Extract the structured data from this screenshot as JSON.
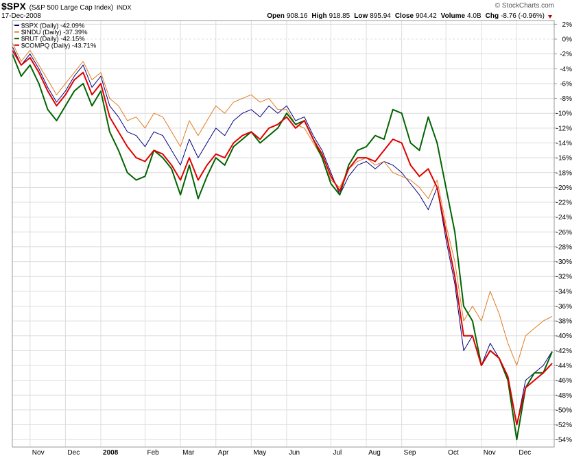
{
  "chart_data": {
    "type": "line",
    "header": {
      "symbol": "$SPX",
      "name": "(S&P 500 Large Cap Index)",
      "exchange": "INDX",
      "date": "17-Dec-2008",
      "quote": [
        {
          "label": "Open",
          "value": "908.16"
        },
        {
          "label": "High",
          "value": "918.85"
        },
        {
          "label": "Low",
          "value": "895.94"
        },
        {
          "label": "Close",
          "value": "904.42"
        },
        {
          "label": "Volume",
          "value": "4.0B"
        },
        {
          "label": "Chg",
          "value": "-8.76 (-0.96%)"
        }
      ],
      "credit": "© StockCharts.com"
    },
    "categories": [
      null,
      null,
      "Nov",
      null,
      null,
      null,
      "Dec",
      null,
      null,
      null,
      "2008",
      null,
      null,
      null,
      null,
      "Feb",
      null,
      null,
      null,
      "Mar",
      null,
      null,
      null,
      "Apr",
      null,
      null,
      null,
      "May",
      null,
      null,
      null,
      "Jun",
      null,
      null,
      null,
      null,
      "Jul",
      null,
      null,
      null,
      "Aug",
      null,
      null,
      null,
      "Sep",
      null,
      null,
      null,
      null,
      "Oct",
      null,
      null,
      null,
      "Nov",
      null,
      null,
      null,
      "Dec",
      null,
      null,
      null,
      null
    ],
    "ylim": [
      -55,
      2.5
    ],
    "yticks": [
      {
        "value": 2,
        "label": "2%"
      },
      {
        "value": 0,
        "label": "0%"
      },
      {
        "value": -2,
        "label": "-2%"
      },
      {
        "value": -4,
        "label": "-4%"
      },
      {
        "value": -6,
        "label": "-6%"
      },
      {
        "value": -8,
        "label": "-8%"
      },
      {
        "value": -10,
        "label": "-10%"
      },
      {
        "value": -12,
        "label": "-12%"
      },
      {
        "value": -14,
        "label": "-14%"
      },
      {
        "value": -16,
        "label": "-16%"
      },
      {
        "value": -18,
        "label": "-18%"
      },
      {
        "value": -20,
        "label": "-20%"
      },
      {
        "value": -22,
        "label": "-22%"
      },
      {
        "value": -24,
        "label": "-24%"
      },
      {
        "value": -26,
        "label": "-26%"
      },
      {
        "value": -28,
        "label": "-28%"
      },
      {
        "value": -30,
        "label": "-30%"
      },
      {
        "value": -32,
        "label": "-32%"
      },
      {
        "value": -34,
        "label": "-34%"
      },
      {
        "value": -36,
        "label": "-36%"
      },
      {
        "value": -38,
        "label": "-38%"
      },
      {
        "value": -40,
        "label": "-40%"
      },
      {
        "value": -42,
        "label": "-42%"
      },
      {
        "value": -44,
        "label": "-44%"
      },
      {
        "value": -46,
        "label": "-46%"
      },
      {
        "value": -48,
        "label": "-48%"
      },
      {
        "value": -50,
        "label": "-50%"
      },
      {
        "value": -52,
        "label": "-52%"
      },
      {
        "value": -54,
        "label": "-54%"
      }
    ],
    "grid": true,
    "legend": "top-left",
    "series": [
      {
        "name": "$SPX (Daily) -42.09%",
        "color": "#000080",
        "width": 1,
        "values": [
          -1.0,
          -3.5,
          -2.0,
          -4.0,
          -6.5,
          -8.5,
          -7.0,
          -5.0,
          -3.5,
          -6.5,
          -5.0,
          -9.0,
          -10.5,
          -12.5,
          -13.0,
          -14.5,
          -12.5,
          -13.0,
          -15.0,
          -17.0,
          -13.5,
          -16.0,
          -14.0,
          -12.0,
          -13.0,
          -11.0,
          -10.0,
          -9.5,
          -10.5,
          -9.0,
          -10.0,
          -9.0,
          -11.0,
          -10.5,
          -13.0,
          -15.0,
          -18.0,
          -21.0,
          -18.5,
          -17.0,
          -16.5,
          -17.5,
          -16.5,
          -17.0,
          -18.0,
          -19.5,
          -21.0,
          -23.0,
          -20.0,
          -27.0,
          -33.0,
          -42.0,
          -40.0,
          -44.0,
          -41.0,
          -43.0,
          -46.0,
          -52.0,
          -46.0,
          -45.0,
          -44.0,
          -42.09
        ]
      },
      {
        "name": "$INDU (Daily) -37.39%",
        "color": "#e07b20",
        "width": 1,
        "values": [
          -0.5,
          -3.0,
          -1.5,
          -3.5,
          -5.5,
          -7.5,
          -6.0,
          -4.5,
          -3.0,
          -5.5,
          -4.5,
          -8.0,
          -9.0,
          -11.0,
          -10.5,
          -12.0,
          -10.0,
          -10.5,
          -12.5,
          -14.5,
          -11.0,
          -13.0,
          -11.0,
          -9.0,
          -10.0,
          -8.5,
          -8.0,
          -7.5,
          -8.5,
          -8.0,
          -9.5,
          -9.5,
          -11.5,
          -12.0,
          -14.0,
          -16.0,
          -19.0,
          -20.0,
          -17.5,
          -16.5,
          -16.0,
          -17.0,
          -16.5,
          -18.0,
          -18.5,
          -19.0,
          -20.0,
          -21.5,
          -19.0,
          -25.0,
          -30.0,
          -38.0,
          -36.0,
          -38.0,
          -34.0,
          -37.0,
          -41.0,
          -44.0,
          -40.0,
          -39.0,
          -38.0,
          -37.39
        ]
      },
      {
        "name": "$RUT (Daily) -42.15%",
        "color": "#006400",
        "width": 2,
        "values": [
          -2.0,
          -5.0,
          -3.5,
          -6.0,
          -9.5,
          -11.0,
          -9.0,
          -7.0,
          -6.0,
          -9.0,
          -7.0,
          -12.5,
          -15.0,
          -18.0,
          -19.0,
          -18.5,
          -15.0,
          -16.0,
          -17.5,
          -21.0,
          -17.0,
          -21.5,
          -18.5,
          -16.0,
          -17.0,
          -14.5,
          -13.5,
          -12.5,
          -14.0,
          -13.0,
          -12.0,
          -10.0,
          -11.5,
          -11.0,
          -13.5,
          -16.0,
          -19.5,
          -21.0,
          -17.0,
          -15.0,
          -14.5,
          -13.0,
          -13.5,
          -9.5,
          -10.0,
          -14.0,
          -15.0,
          -10.5,
          -14.0,
          -20.0,
          -26.0,
          -36.0,
          -38.0,
          -44.0,
          -42.0,
          -43.0,
          -46.0,
          -54.0,
          -47.0,
          -45.0,
          -45.0,
          -42.15
        ]
      },
      {
        "name": "$COMPQ (Daily) -43.71%",
        "color": "#e00000",
        "width": 2,
        "values": [
          -1.5,
          -3.5,
          -2.5,
          -4.5,
          -7.0,
          -9.0,
          -7.5,
          -5.5,
          -4.5,
          -7.5,
          -6.0,
          -10.5,
          -12.5,
          -14.5,
          -16.0,
          -16.5,
          -15.0,
          -15.5,
          -17.0,
          -19.0,
          -16.0,
          -19.0,
          -17.0,
          -15.5,
          -16.0,
          -14.0,
          -13.0,
          -12.5,
          -13.5,
          -12.0,
          -11.5,
          -10.5,
          -12.0,
          -11.0,
          -13.5,
          -15.5,
          -18.5,
          -20.5,
          -17.5,
          -16.0,
          -16.0,
          -16.5,
          -15.0,
          -13.5,
          -14.0,
          -17.0,
          -18.5,
          -17.5,
          -20.0,
          -26.0,
          -32.0,
          -40.0,
          -40.0,
          -44.0,
          -42.0,
          -43.0,
          -45.5,
          -52.0,
          -47.0,
          -46.0,
          -45.0,
          -43.71
        ]
      }
    ]
  }
}
